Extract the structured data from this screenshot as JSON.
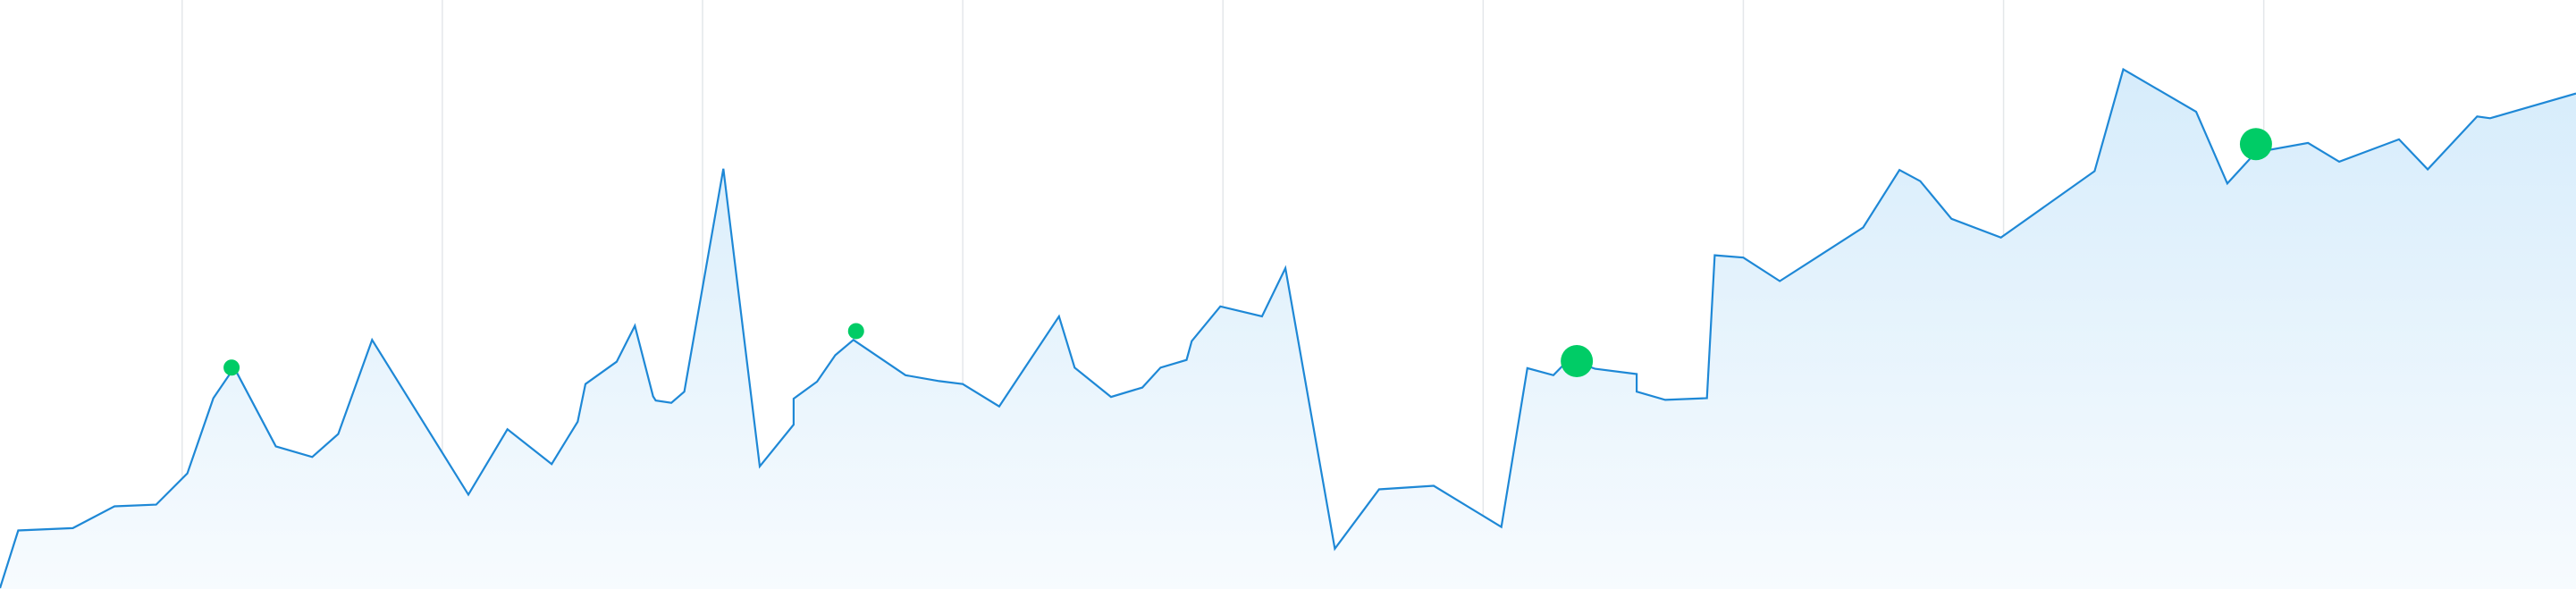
{
  "colors": {
    "background": "#ffffff",
    "line": "#1e88d6",
    "area_top": "#d6ecfb",
    "area_bottom": "#f7fbfe",
    "gridline": "#e4e7ea",
    "marker": "#00cc66"
  },
  "chart_data": {
    "type": "area",
    "title": "",
    "xlabel": "",
    "ylabel": "",
    "grid": "vertical",
    "legend": "none",
    "xlim": [
      0,
      99
    ],
    "ylim": [
      0,
      100
    ],
    "vertical_gridlines_at_x": [
      7,
      17,
      27,
      37,
      47,
      57,
      67,
      77,
      87
    ],
    "x": [
      0,
      0.7,
      2.8,
      4.4,
      6,
      7.2,
      8.2,
      9,
      10.6,
      12,
      13,
      14.3,
      18,
      19.5,
      21.2,
      22.2,
      22.5,
      23.7,
      24.4,
      25.1,
      25.2,
      25.8,
      26.3,
      27.8,
      29.2,
      30.5,
      30.5,
      31.4,
      32.1,
      32.8,
      34.8,
      36.1,
      37,
      38.4,
      40.7,
      41.3,
      42.7,
      43.9,
      44.6,
      45.6,
      45.8,
      46.9,
      48.5,
      49.4,
      51.3,
      53,
      55.1,
      57.7,
      58.7,
      59.7,
      60.3,
      61.3,
      62.9,
      62.9,
      64,
      65.6,
      65.9,
      67,
      68.4,
      71.6,
      73,
      73.8,
      75,
      76.9,
      80.5,
      81.6,
      84.4,
      85.6,
      86.7,
      88.7,
      89.9,
      92.2,
      93.3,
      95.2,
      95.7,
      99
    ],
    "y": [
      0,
      9.8,
      10.2,
      13.9,
      14.2,
      19.5,
      32.3,
      37.5,
      24.1,
      22.3,
      26.2,
      42.2,
      15.9,
      27,
      21.1,
      28.3,
      34.7,
      38.5,
      44.6,
      32.6,
      31.9,
      31.5,
      33.4,
      71.3,
      20.7,
      27.8,
      32.2,
      35.1,
      39.6,
      42.2,
      36.2,
      35.2,
      34.7,
      30.9,
      46.2,
      37.5,
      32.5,
      34.1,
      37.5,
      38.8,
      42,
      47.9,
      46.2,
      54.4,
      6.7,
      16.8,
      17.4,
      10.4,
      37.4,
      36.2,
      38.9,
      37.3,
      36.4,
      33.4,
      32,
      32.3,
      56.6,
      56.2,
      52.2,
      61.3,
      71.1,
      69.2,
      62.8,
      59.6,
      70.9,
      88.2,
      81,
      68.8,
      74.1,
      75.7,
      72.5,
      76.3,
      71.2,
      80.2,
      79.9,
      84.1
    ],
    "highlight_points": [
      {
        "x": 8.9,
        "y": 37.5,
        "size": "small"
      },
      {
        "x": 32.9,
        "y": 43.7,
        "size": "small"
      },
      {
        "x": 60.6,
        "y": 38.6,
        "size": "large"
      },
      {
        "x": 86.7,
        "y": 75.5,
        "size": "large"
      }
    ]
  }
}
